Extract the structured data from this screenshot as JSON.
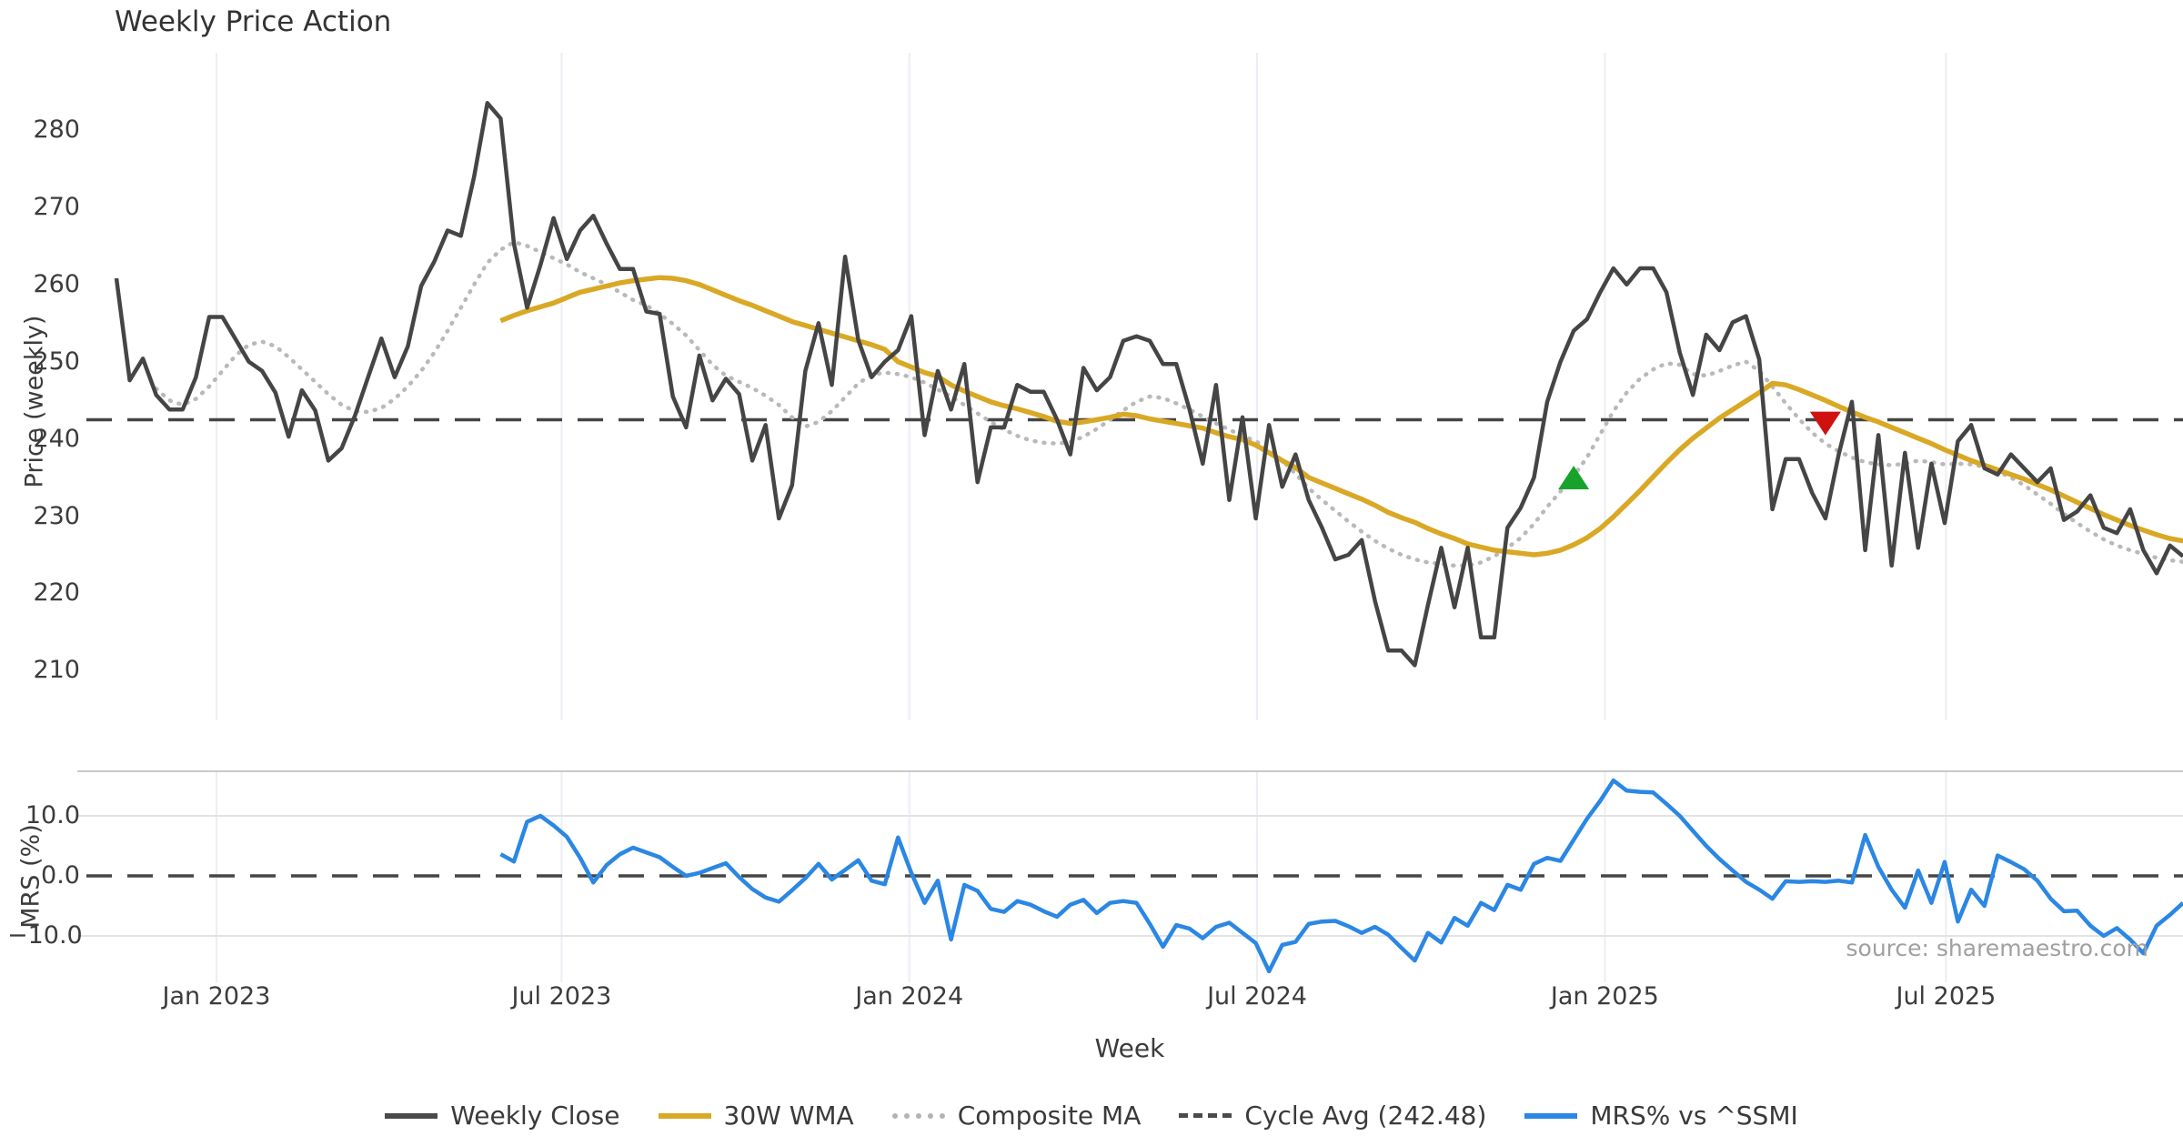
{
  "title": "Weekly Price Action",
  "source_note": "source: sharemaestro.com",
  "axes": {
    "price_axis_label": "Price (weekly)",
    "mrs_axis_label": "MRS (%)",
    "x_axis_label": "Week"
  },
  "legend": {
    "items": [
      {
        "label": "Weekly Close",
        "swatch": "solid-dark"
      },
      {
        "label": "30W WMA",
        "swatch": "solid-gold"
      },
      {
        "label": "Composite MA",
        "swatch": "dotted-gray"
      },
      {
        "label": "Cycle Avg (242.48)",
        "swatch": "dashed-dark"
      },
      {
        "label": "MRS% vs ^SSMI",
        "swatch": "solid-blue"
      }
    ]
  },
  "colors": {
    "close": "#454545",
    "wma": "#d9a825",
    "composite": "#b9b9b9",
    "cycle_avg": "#454545",
    "mrs": "#2b87e3",
    "grid_vertical": "#ebeef4",
    "grid_horizontal": "#e3e3e3",
    "panel_spine": "#c9c9c9",
    "marker_up": "#17a32b",
    "marker_down": "#cf1110"
  },
  "chart_data": {
    "type": "line",
    "title": "Weekly Price Action",
    "xlabel": "Week",
    "panels": [
      {
        "name": "price",
        "ylabel": "Price (weekly)",
        "yticks": [
          280,
          270,
          260,
          250,
          240,
          230,
          220,
          210
        ],
        "ylim": [
          204,
          290
        ]
      },
      {
        "name": "mrs",
        "ylabel": "MRS (%)",
        "yticks": [
          10.0,
          0.0,
          -10.0
        ],
        "ytick_labels": [
          "10.0",
          "0.0",
          "−10.0"
        ],
        "ylim": [
          -17.5,
          17.5
        ]
      }
    ],
    "x_ticks": [
      {
        "label": "Jan 2023",
        "week": 7.55
      },
      {
        "label": "Jul 2023",
        "week": 33.6
      },
      {
        "label": "Jan 2024",
        "week": 59.85
      },
      {
        "label": "Jul 2024",
        "week": 86.1
      },
      {
        "label": "Jan 2025",
        "week": 112.35
      },
      {
        "label": "Jul 2025",
        "week": 138.1
      }
    ],
    "cycle_avg": {
      "value": 242.48,
      "label": "Cycle Avg (242.48)"
    },
    "mrs_zero_line": 0.0,
    "markers": [
      {
        "type": "triangle-up",
        "week": 110,
        "value": 235.0,
        "color": "#17a32b"
      },
      {
        "type": "triangle-down",
        "week": 129,
        "value": 242.0,
        "color": "#cf1110"
      }
    ],
    "series": [
      {
        "name": "Weekly Close",
        "panel": "price",
        "start_week": 0,
        "values": [
          260.8,
          247.6,
          250.4,
          245.7,
          243.8,
          243.8,
          248.0,
          255.8,
          255.8,
          252.9,
          250.0,
          248.8,
          246.0,
          240.3,
          246.3,
          243.7,
          237.2,
          238.8,
          243.0,
          248.0,
          253.0,
          248.0,
          252.0,
          259.8,
          263.0,
          267.0,
          266.3,
          274.0,
          283.5,
          281.5,
          265.3,
          257.0,
          262.5,
          268.6,
          263.3,
          267.0,
          268.9,
          265.3,
          262.0,
          262.0,
          256.5,
          256.2,
          245.5,
          241.5,
          250.8,
          245.0,
          247.8,
          245.8,
          237.2,
          241.8,
          229.7,
          234.0,
          248.8,
          255.0,
          247.0,
          263.6,
          252.8,
          248.0,
          250.0,
          251.5,
          255.9,
          240.5,
          248.8,
          243.8,
          249.7,
          234.4,
          241.5,
          241.5,
          247.0,
          246.1,
          246.1,
          242.5,
          238.0,
          249.2,
          246.3,
          248.0,
          252.7,
          253.3,
          252.7,
          249.7,
          249.7,
          243.8,
          236.8,
          247.0,
          232.1,
          242.8,
          229.7,
          241.8,
          233.8,
          238.0,
          232.1,
          228.5,
          224.4,
          225.0,
          226.9,
          219.0,
          212.6,
          212.6,
          210.7,
          218.5,
          225.9,
          218.2,
          225.9,
          214.3,
          214.3,
          228.5,
          231.1,
          235.0,
          244.8,
          250.0,
          254.0,
          255.5,
          259.0,
          262.1,
          260.0,
          262.1,
          262.1,
          259.0,
          251.2,
          245.7,
          253.5,
          251.5,
          255.1,
          255.9,
          250.3,
          230.9,
          237.4,
          237.4,
          233.0,
          229.7,
          238.0,
          244.8,
          225.6,
          240.5,
          223.6,
          238.2,
          225.9,
          236.8,
          229.1,
          239.7,
          241.8,
          236.2,
          235.4,
          238.0,
          236.2,
          234.4,
          236.2,
          229.5,
          230.6,
          232.7,
          228.5,
          227.8,
          230.9,
          225.6,
          222.6,
          226.2,
          224.8
        ]
      },
      {
        "name": "30W WMA",
        "panel": "price",
        "start_week": 29,
        "values": [
          255.3,
          256.0,
          256.6,
          257.1,
          257.6,
          258.3,
          259.0,
          259.4,
          259.8,
          260.2,
          260.5,
          260.7,
          260.9,
          260.8,
          260.5,
          260.0,
          259.3,
          258.6,
          257.9,
          257.3,
          256.6,
          255.9,
          255.2,
          254.7,
          254.2,
          253.7,
          253.2,
          252.7,
          252.2,
          251.6,
          250.0,
          249.3,
          248.6,
          248.1,
          247.0,
          246.2,
          245.5,
          244.8,
          244.3,
          243.9,
          243.4,
          242.9,
          242.3,
          242.0,
          242.2,
          242.5,
          242.8,
          243.2,
          243.0,
          242.6,
          242.3,
          242.0,
          241.7,
          241.4,
          240.8,
          240.3,
          239.9,
          239.2,
          238.2,
          237.2,
          236.3,
          235.0,
          234.3,
          233.6,
          232.9,
          232.2,
          231.4,
          230.5,
          229.8,
          229.2,
          228.4,
          227.7,
          227.1,
          226.4,
          226.0,
          225.6,
          225.4,
          225.2,
          225.0,
          225.2,
          225.6,
          226.3,
          227.2,
          228.4,
          229.9,
          231.6,
          233.3,
          235.1,
          236.9,
          238.6,
          240.1,
          241.4,
          242.7,
          243.8,
          244.9,
          246.0,
          247.2,
          247.0,
          246.4,
          245.7,
          245.0,
          244.2,
          243.5,
          242.8,
          242.2,
          241.5,
          240.8,
          240.1,
          239.4,
          238.6,
          237.9,
          237.2,
          236.6,
          236.0,
          235.4,
          234.8,
          234.1,
          233.4,
          232.6,
          231.8,
          231.0,
          230.2,
          229.5,
          228.8,
          228.2,
          227.6,
          227.1,
          226.8
        ]
      },
      {
        "name": "Composite MA",
        "panel": "price",
        "start_week": 3,
        "values": [
          246.5,
          245.0,
          244.4,
          245.2,
          246.8,
          248.8,
          250.8,
          252.2,
          252.6,
          252.0,
          250.6,
          249.0,
          247.4,
          245.8,
          244.4,
          243.6,
          243.5,
          244.0,
          245.2,
          246.8,
          248.8,
          251.2,
          254.0,
          257.0,
          260.0,
          262.8,
          264.5,
          265.5,
          265.0,
          264.2,
          263.4,
          262.6,
          261.6,
          260.8,
          260.0,
          259.0,
          258.0,
          257.3,
          256.2,
          254.9,
          253.4,
          251.5,
          249.6,
          248.2,
          247.4,
          246.6,
          245.6,
          244.4,
          242.8,
          241.6,
          242.2,
          243.6,
          245.4,
          247.2,
          248.3,
          248.6,
          248.4,
          248.0,
          247.3,
          246.4,
          245.5,
          244.4,
          243.3,
          242.2,
          241.2,
          240.4,
          239.8,
          239.5,
          239.4,
          239.6,
          240.3,
          241.3,
          242.5,
          243.7,
          244.8,
          245.5,
          245.3,
          244.6,
          243.8,
          242.9,
          242.0,
          241.2,
          240.4,
          239.7,
          238.6,
          237.2,
          235.5,
          233.6,
          232.1,
          230.7,
          229.3,
          228.0,
          226.8,
          225.8,
          225.0,
          224.4,
          224.0,
          223.8,
          223.6,
          223.6,
          224.0,
          224.8,
          225.9,
          227.2,
          229.0,
          231.2,
          233.2,
          235.2,
          237.6,
          240.6,
          243.6,
          246.0,
          247.8,
          249.0,
          249.8,
          249.6,
          248.4,
          248.2,
          248.8,
          249.5,
          250.0,
          248.8,
          246.8,
          244.6,
          242.6,
          240.8,
          239.4,
          238.4,
          237.6,
          237.0,
          236.7,
          236.6,
          236.8,
          237.2,
          237.0,
          236.7,
          236.8,
          236.7,
          236.4,
          235.8,
          235.0,
          234.0,
          232.8,
          231.6,
          230.3,
          229.1,
          228.0,
          227.0,
          226.2,
          225.6,
          225.1,
          224.6,
          224.3,
          224.1
        ]
      },
      {
        "name": "MRS% vs ^SSMI",
        "panel": "mrs",
        "start_week": 29,
        "values": [
          3.6,
          2.4,
          9.0,
          10.0,
          8.4,
          6.5,
          3.0,
          -1.1,
          1.8,
          3.6,
          4.7,
          3.9,
          3.1,
          1.5,
          0.0,
          0.5,
          1.3,
          2.1,
          -0.2,
          -2.2,
          -3.6,
          -4.3,
          -2.4,
          -0.4,
          2.0,
          -0.6,
          1.0,
          2.6,
          -0.8,
          -1.4,
          6.4,
          0.5,
          -4.5,
          -0.8,
          -10.6,
          -1.5,
          -2.5,
          -5.5,
          -6.0,
          -4.2,
          -4.8,
          -5.9,
          -6.8,
          -4.8,
          -4.0,
          -6.2,
          -4.5,
          -4.2,
          -4.5,
          -8.0,
          -11.8,
          -8.2,
          -8.8,
          -10.4,
          -8.5,
          -7.8,
          -9.5,
          -11.2,
          -15.9,
          -11.5,
          -11.0,
          -8.0,
          -7.6,
          -7.5,
          -8.4,
          -9.5,
          -8.5,
          -9.8,
          -12.0,
          -14.1,
          -9.5,
          -11.1,
          -7.0,
          -8.3,
          -4.5,
          -5.7,
          -1.5,
          -2.3,
          2.0,
          3.0,
          2.5,
          6.0,
          9.5,
          12.5,
          15.9,
          14.2,
          14.0,
          13.9,
          12.0,
          10.0,
          7.5,
          5.0,
          2.8,
          0.9,
          -1.0,
          -2.3,
          -3.8,
          -0.9,
          -1.0,
          -0.9,
          -1.0,
          -0.8,
          -1.1,
          6.8,
          1.5,
          -2.3,
          -5.3,
          0.9,
          -4.5,
          2.3,
          -7.6,
          -2.3,
          -5.0,
          3.4,
          2.3,
          1.1,
          -0.8,
          -3.8,
          -5.9,
          -5.8,
          -8.3,
          -10.0,
          -8.7,
          -10.6,
          -12.9,
          -8.3,
          -6.5,
          -4.5
        ]
      }
    ]
  }
}
